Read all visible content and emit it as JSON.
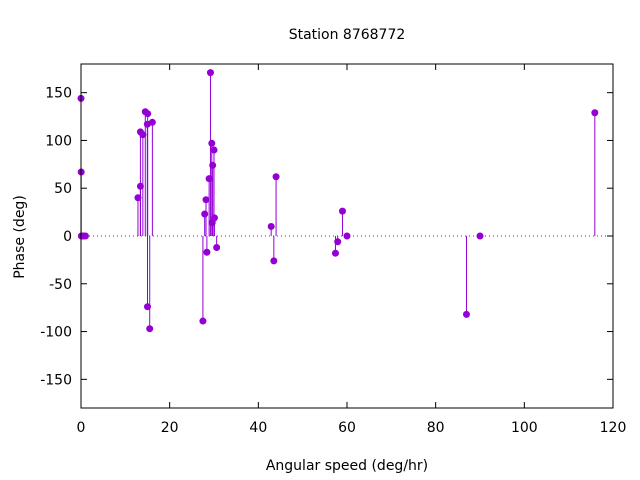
{
  "chart_data": {
    "type": "scatter",
    "style": "impulses-with-points",
    "title": "Station 8768772",
    "xlabel": "Angular speed (deg/hr)",
    "ylabel": "Phase (deg)",
    "xlim": [
      0,
      120
    ],
    "ylim": [
      -180,
      180
    ],
    "xticks": [
      0,
      20,
      40,
      60,
      80,
      100,
      120
    ],
    "yticks": [
      -150,
      -100,
      -50,
      0,
      50,
      100,
      150
    ],
    "xtick_labels": [
      "0",
      "20",
      "40",
      "60",
      "80",
      "100",
      "120"
    ],
    "ytick_labels": [
      "-150",
      "-100",
      "-50",
      "0",
      "50",
      "100",
      "150"
    ],
    "grid": false,
    "zero_line": "dotted",
    "color": "#9400d3",
    "points": [
      {
        "x": 0.0,
        "y": 144
      },
      {
        "x": 0.04,
        "y": 67
      },
      {
        "x": 0.08,
        "y": 0
      },
      {
        "x": 0.5,
        "y": 0
      },
      {
        "x": 0.55,
        "y": 0
      },
      {
        "x": 1.0,
        "y": 0
      },
      {
        "x": 12.85,
        "y": 40
      },
      {
        "x": 13.4,
        "y": 52
      },
      {
        "x": 13.4,
        "y": 109
      },
      {
        "x": 13.95,
        "y": 106
      },
      {
        "x": 14.5,
        "y": 130
      },
      {
        "x": 14.96,
        "y": 117
      },
      {
        "x": 15.0,
        "y": -74
      },
      {
        "x": 15.04,
        "y": 128
      },
      {
        "x": 15.5,
        "y": -97
      },
      {
        "x": 16.1,
        "y": 119
      },
      {
        "x": 27.5,
        "y": -89
      },
      {
        "x": 27.9,
        "y": 23
      },
      {
        "x": 28.2,
        "y": 38
      },
      {
        "x": 28.4,
        "y": -17
      },
      {
        "x": 28.9,
        "y": 60
      },
      {
        "x": 29.2,
        "y": 171
      },
      {
        "x": 29.5,
        "y": 97
      },
      {
        "x": 29.6,
        "y": 14
      },
      {
        "x": 29.7,
        "y": 74
      },
      {
        "x": 30.0,
        "y": 90
      },
      {
        "x": 30.1,
        "y": 19
      },
      {
        "x": 30.6,
        "y": -12
      },
      {
        "x": 42.9,
        "y": 10
      },
      {
        "x": 43.5,
        "y": -26
      },
      {
        "x": 44.0,
        "y": 62
      },
      {
        "x": 57.4,
        "y": -18
      },
      {
        "x": 57.9,
        "y": -6
      },
      {
        "x": 58.98,
        "y": 26
      },
      {
        "x": 60.0,
        "y": 0
      },
      {
        "x": 86.95,
        "y": -82
      },
      {
        "x": 90.0,
        "y": 0
      },
      {
        "x": 115.9,
        "y": 129
      }
    ]
  }
}
